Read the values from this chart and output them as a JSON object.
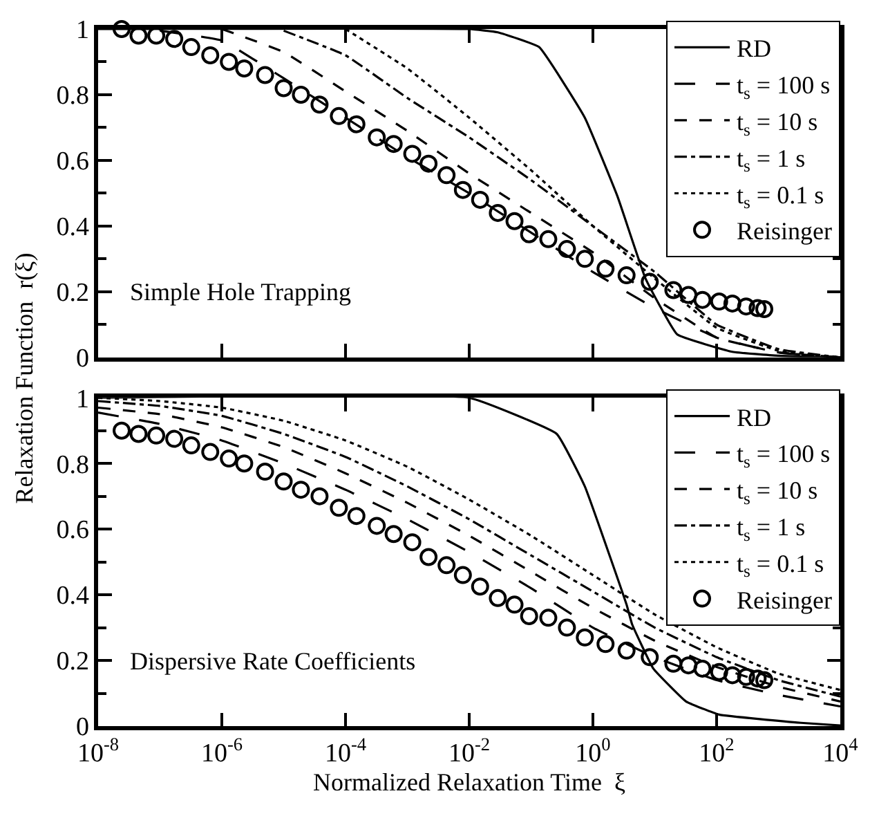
{
  "chart_data": [
    {
      "type": "line",
      "ylabel": "Relaxation Function  r(ξ)",
      "annotations": [
        "Simple Hole Trapping"
      ],
      "log": "x",
      "xlim": [
        1e-08,
        10000
      ],
      "ylim": [
        0,
        1
      ],
      "xticks": [
        {
          "value": 1e-08,
          "label": "10$^{-8}$"
        },
        {
          "value": 1e-06,
          "label": "10$^{-6}$"
        },
        {
          "value": 0.0001,
          "label": "10$^{-4}$"
        },
        {
          "value": 0.01,
          "label": "10$^{-2}$"
        },
        {
          "value": 1,
          "label": "10$^{0}$"
        },
        {
          "value": 100,
          "label": "10$^{2}$"
        },
        {
          "value": 10000,
          "label": "10$^{4}$"
        }
      ],
      "yticks": [
        0,
        0.2,
        0.4,
        0.6,
        0.8,
        1
      ],
      "tick_labels": "y",
      "legend": "top right",
      "series": [
        {
          "name": "RD",
          "color": "#000000",
          "line_style": "solid",
          "marker": "none",
          "x": [
            1e-08,
            0.01,
            0.029,
            0.135,
            0.74,
            2.5,
            7.1,
            23,
            180,
            1000,
            10000
          ],
          "values": [
            1,
            1,
            0.99,
            0.945,
            0.73,
            0.49,
            0.24,
            0.07,
            0.017,
            0.005,
            0
          ]
        },
        {
          "name": "t$_{s}$ = 100 s",
          "color": "#000000",
          "line_style": "longdash",
          "marker": "none",
          "x": [
            1e-07,
            1e-06,
            1e-05,
            0.0001,
            0.001,
            0.01,
            0.1,
            1,
            10,
            100,
            1000,
            10000
          ],
          "values": [
            0.995,
            0.965,
            0.85,
            0.73,
            0.61,
            0.5,
            0.38,
            0.26,
            0.15,
            0.06,
            0.015,
            0
          ]
        },
        {
          "name": "t$_{s}$ = 10 s",
          "color": "#000000",
          "line_style": "dashed",
          "marker": "none",
          "x": [
            1e-06,
            1e-05,
            0.0001,
            0.001,
            0.01,
            0.1,
            1,
            10,
            100,
            1000,
            10000
          ],
          "values": [
            1,
            0.93,
            0.81,
            0.69,
            0.56,
            0.44,
            0.32,
            0.18,
            0.06,
            0.015,
            0
          ]
        },
        {
          "name": "t$_{s}$ = 1 s",
          "color": "#000000",
          "line_style": "dashdot",
          "marker": "none",
          "x": [
            1e-05,
            0.0001,
            0.001,
            0.01,
            0.1,
            1,
            10,
            100,
            1000,
            10000
          ],
          "values": [
            0.995,
            0.92,
            0.79,
            0.67,
            0.54,
            0.4,
            0.26,
            0.1,
            0.025,
            0
          ]
        },
        {
          "name": "t$_{s}$ = 0.1 s",
          "color": "#000000",
          "line_style": "dotted",
          "marker": "none",
          "x": [
            0.0001,
            0.001,
            0.01,
            0.1,
            1,
            10,
            100,
            1000,
            10000
          ],
          "values": [
            1,
            0.88,
            0.73,
            0.57,
            0.4,
            0.24,
            0.09,
            0.02,
            0
          ]
        },
        {
          "name": "Reisinger",
          "type": "scatter",
          "color": "#000000",
          "marker": "circle",
          "x": [
            2.4e-08,
            4.5e-08,
            8.7e-08,
            1.7e-07,
            3.2e-07,
            6.5e-07,
            1.3e-06,
            2.3e-06,
            5e-06,
            1e-05,
            1.9e-05,
            3.8e-05,
            7.8e-05,
            0.00015,
            0.00032,
            0.0006,
            0.0012,
            0.0022,
            0.0043,
            0.0079,
            0.015,
            0.029,
            0.054,
            0.093,
            0.19,
            0.38,
            0.74,
            1.6,
            3.5,
            8.3,
            20,
            35,
            59,
            110,
            180,
            300,
            460,
            590
          ],
          "values": [
            1.0,
            0.98,
            0.98,
            0.97,
            0.945,
            0.92,
            0.9,
            0.88,
            0.86,
            0.82,
            0.8,
            0.77,
            0.735,
            0.71,
            0.67,
            0.65,
            0.62,
            0.59,
            0.555,
            0.51,
            0.48,
            0.44,
            0.415,
            0.375,
            0.36,
            0.33,
            0.3,
            0.27,
            0.25,
            0.23,
            0.205,
            0.19,
            0.175,
            0.17,
            0.164,
            0.155,
            0.15,
            0.147
          ]
        }
      ]
    },
    {
      "type": "line",
      "xlabel": "Normalized Relaxation Time  ξ",
      "annotations": [
        "Dispersive Rate Coefficients"
      ],
      "log": "x",
      "xlim": [
        1e-08,
        10000
      ],
      "ylim": [
        0,
        1
      ],
      "xticks": [
        {
          "value": 1e-08,
          "label": "10$^{-8}$"
        },
        {
          "value": 1e-06,
          "label": "10$^{-6}$"
        },
        {
          "value": 0.0001,
          "label": "10$^{-4}$"
        },
        {
          "value": 0.01,
          "label": "10$^{-2}$"
        },
        {
          "value": 1,
          "label": "10$^{0}$"
        },
        {
          "value": 100,
          "label": "10$^{2}$"
        },
        {
          "value": 10000,
          "label": "10$^{4}$"
        }
      ],
      "yticks": [
        0,
        0.2,
        0.4,
        0.6,
        0.8,
        1
      ],
      "legend": "top right",
      "x": [
        1e-08,
        1e-07,
        1e-06,
        1e-05,
        0.0001,
        0.001,
        0.01,
        0.1,
        1,
        10,
        100,
        1000,
        10000
      ],
      "series": [
        {
          "name": "RD",
          "color": "#000000",
          "line_style": "solid",
          "marker": "none",
          "x": [
            1e-08,
            0.01,
            0.26,
            0.74,
            3.5,
            4.3,
            9.5,
            32,
            110,
            2300,
            10000
          ],
          "values": [
            1,
            1,
            0.89,
            0.73,
            0.37,
            0.31,
            0.175,
            0.075,
            0.035,
            0.01,
            0.002
          ]
        },
        {
          "name": "t$_{s}$ = 100 s",
          "color": "#000000",
          "line_style": "longdash",
          "marker": "none",
          "values": [
            0.955,
            0.92,
            0.87,
            0.8,
            0.72,
            0.63,
            0.53,
            0.42,
            0.3,
            0.21,
            0.14,
            0.095,
            0.06
          ]
        },
        {
          "name": "t$_{s}$ = 10 s",
          "color": "#000000",
          "line_style": "dashed",
          "marker": "none",
          "values": [
            0.97,
            0.95,
            0.91,
            0.85,
            0.77,
            0.68,
            0.58,
            0.47,
            0.36,
            0.26,
            0.18,
            0.12,
            0.075
          ]
        },
        {
          "name": "t$_{s}$ = 1 s",
          "color": "#000000",
          "line_style": "dashdot",
          "marker": "none",
          "values": [
            0.99,
            0.975,
            0.945,
            0.89,
            0.82,
            0.73,
            0.63,
            0.52,
            0.41,
            0.3,
            0.21,
            0.14,
            0.09
          ]
        },
        {
          "name": "t$_{s}$ = 0.1 s",
          "color": "#000000",
          "line_style": "dotted",
          "marker": "none",
          "values": [
            1,
            0.99,
            0.97,
            0.93,
            0.87,
            0.79,
            0.69,
            0.58,
            0.46,
            0.34,
            0.24,
            0.16,
            0.11
          ]
        },
        {
          "name": "Reisinger",
          "type": "scatter",
          "color": "#000000",
          "marker": "circle",
          "x": [
            2.4e-08,
            4.5e-08,
            8.7e-08,
            1.7e-07,
            3.2e-07,
            6.5e-07,
            1.3e-06,
            2.3e-06,
            5e-06,
            1e-05,
            1.9e-05,
            3.8e-05,
            7.8e-05,
            0.00015,
            0.00032,
            0.0006,
            0.0012,
            0.0022,
            0.0043,
            0.0079,
            0.015,
            0.029,
            0.054,
            0.093,
            0.19,
            0.38,
            0.74,
            1.6,
            3.5,
            8.3,
            20,
            35,
            59,
            110,
            180,
            300,
            460,
            590
          ],
          "values": [
            0.9,
            0.89,
            0.885,
            0.875,
            0.855,
            0.835,
            0.815,
            0.8,
            0.775,
            0.745,
            0.72,
            0.7,
            0.665,
            0.64,
            0.61,
            0.585,
            0.56,
            0.515,
            0.49,
            0.46,
            0.425,
            0.39,
            0.37,
            0.335,
            0.33,
            0.3,
            0.27,
            0.25,
            0.23,
            0.21,
            0.19,
            0.185,
            0.175,
            0.165,
            0.155,
            0.15,
            0.145,
            0.14
          ]
        }
      ]
    }
  ]
}
